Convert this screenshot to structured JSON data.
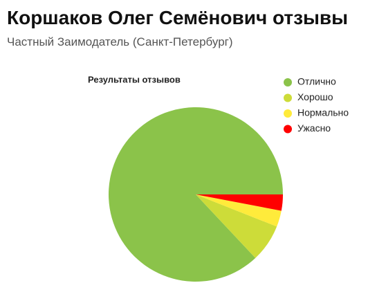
{
  "header": {
    "title": "Коршаков Олег Семёнович отзывы",
    "subtitle": "Частный Заимодатель (Санкт-Петербург)"
  },
  "chart_data": {
    "type": "pie",
    "title": "Результаты отзывов",
    "categories": [
      "Отлично",
      "Хорошо",
      "Нормально",
      "Ужасно"
    ],
    "values": [
      87,
      7,
      3,
      3
    ],
    "colors": [
      "#8bc34a",
      "#cddc39",
      "#ffeb3b",
      "#ff0000"
    ],
    "legend": "right"
  }
}
